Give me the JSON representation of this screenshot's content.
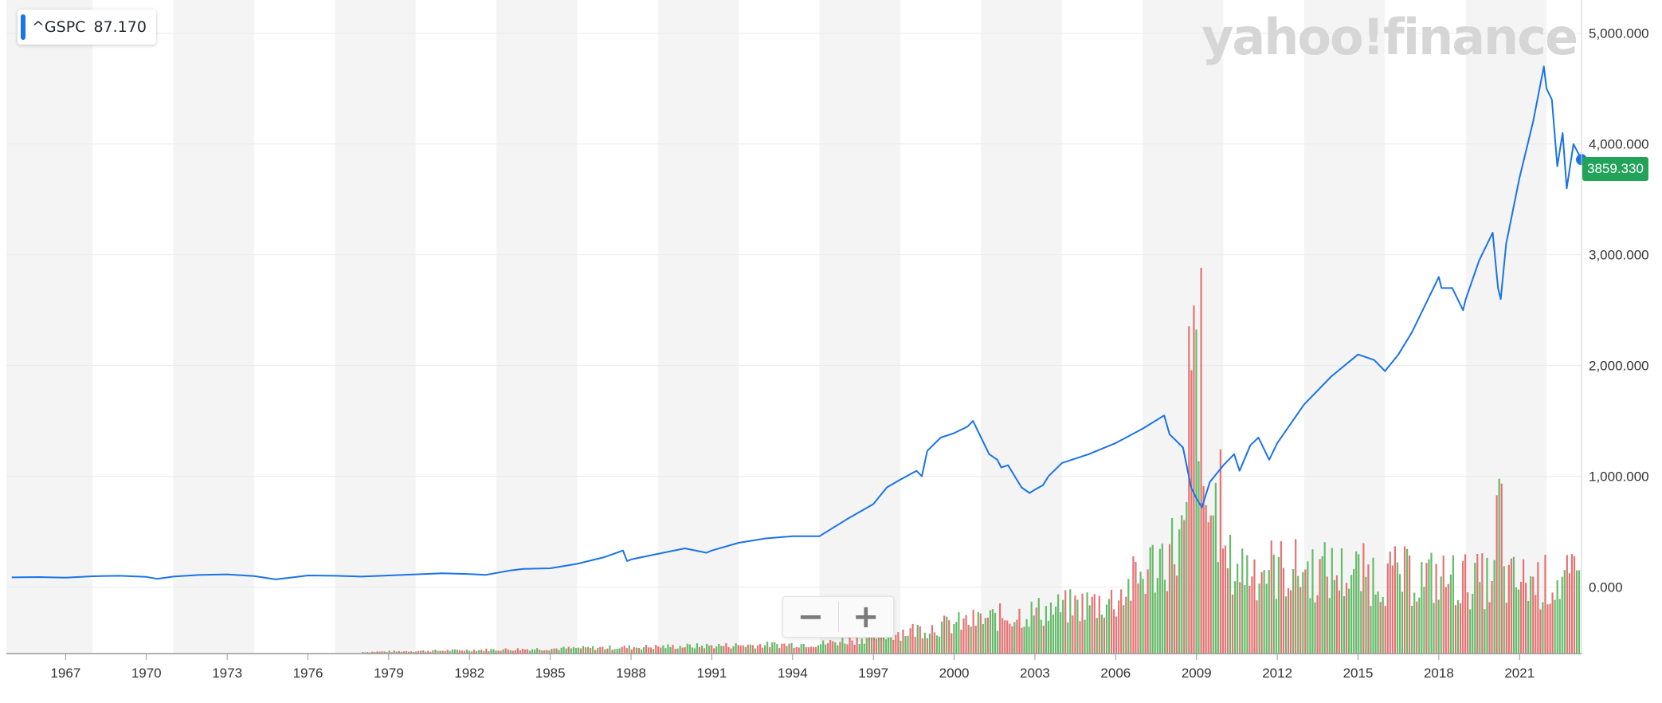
{
  "legend": {
    "symbol": "^GSPC",
    "value": "87.170",
    "color": "#1a73e8"
  },
  "watermark": "yahoo!finance",
  "current_price": {
    "label": "3859.330",
    "color": "#21a35a"
  },
  "zoom": {
    "minus": "−",
    "plus": "+"
  },
  "chart_data": {
    "type": "line",
    "series": [
      {
        "color": "#1a73e8",
        "x": [
          1965.0,
          1966.0,
          1967.0,
          1968.0,
          1969.0,
          1970.0,
          1970.4,
          1971.0,
          1972.0,
          1973.0,
          1974.0,
          1974.8,
          1975.5,
          1976.0,
          1977.0,
          1978.0,
          1979.0,
          1980.0,
          1981.0,
          1982.0,
          1982.6,
          1983.5,
          1984.0,
          1985.0,
          1986.0,
          1987.0,
          1987.7,
          1987.85,
          1988.0,
          1989.0,
          1990.0,
          1990.8,
          1991.0,
          1992.0,
          1993.0,
          1994.0,
          1995.0,
          1996.0,
          1997.0,
          1997.5,
          1998.0,
          1998.6,
          1998.8,
          1999.0,
          1999.5,
          2000.0,
          2000.5,
          2000.7,
          2001.0,
          2001.3,
          2001.6,
          2001.75,
          2002.0,
          2002.5,
          2002.8,
          2003.0,
          2003.3,
          2003.5,
          2004.0,
          2005.0,
          2006.0,
          2007.0,
          2007.8,
          2008.0,
          2008.5,
          2008.8,
          2009.0,
          2009.2,
          2009.5,
          2010.0,
          2010.4,
          2010.6,
          2011.0,
          2011.3,
          2011.7,
          2012.0,
          2013.0,
          2014.0,
          2015.0,
          2015.6,
          2016.0,
          2016.5,
          2017.0,
          2018.0,
          2018.1,
          2018.5,
          2018.9,
          2019.0,
          2019.5,
          2020.0,
          2020.2,
          2020.3,
          2020.5,
          2021.0,
          2021.5,
          2021.9,
          2022.0,
          2022.2,
          2022.4,
          2022.6,
          2022.75,
          2023.0,
          2023.3
        ],
        "y": [
          88,
          91,
          85,
          98,
          102,
          92,
          75,
          95,
          110,
          115,
          100,
          70,
          90,
          105,
          102,
          95,
          105,
          115,
          125,
          118,
          110,
          150,
          165,
          170,
          210,
          270,
          330,
          235,
          250,
          300,
          350,
          310,
          330,
          400,
          440,
          460,
          460,
          610,
          750,
          900,
          970,
          1050,
          1000,
          1230,
          1350,
          1390,
          1450,
          1500,
          1350,
          1200,
          1150,
          1080,
          1100,
          900,
          850,
          880,
          920,
          1000,
          1120,
          1200,
          1300,
          1430,
          1550,
          1380,
          1260,
          900,
          800,
          720,
          950,
          1100,
          1200,
          1050,
          1280,
          1350,
          1150,
          1300,
          1650,
          1900,
          2100,
          2050,
          1950,
          2100,
          2300,
          2800,
          2700,
          2700,
          2500,
          2600,
          2950,
          3200,
          2700,
          2600,
          3100,
          3700,
          4200,
          4700,
          4500,
          4400,
          3800,
          4100,
          3600,
          4000,
          3859
        ]
      }
    ],
    "yticks": [
      "5,000.000",
      "4,000.000",
      "3,000.000",
      "2,000.000",
      "1,000.000",
      "0.000"
    ],
    "xticks": [
      "1967",
      "1970",
      "1973",
      "1976",
      "1979",
      "1982",
      "1985",
      "1988",
      "1991",
      "1994",
      "1997",
      "2000",
      "2003",
      "2006",
      "2009",
      "2012",
      "2015",
      "2018",
      "2021"
    ],
    "xlim": [
      1964.8,
      2023.3
    ],
    "ylim": [
      -600,
      5300
    ],
    "grid": true,
    "volume": {
      "up_color": "#66bb6a",
      "down_color": "#e57373"
    }
  }
}
